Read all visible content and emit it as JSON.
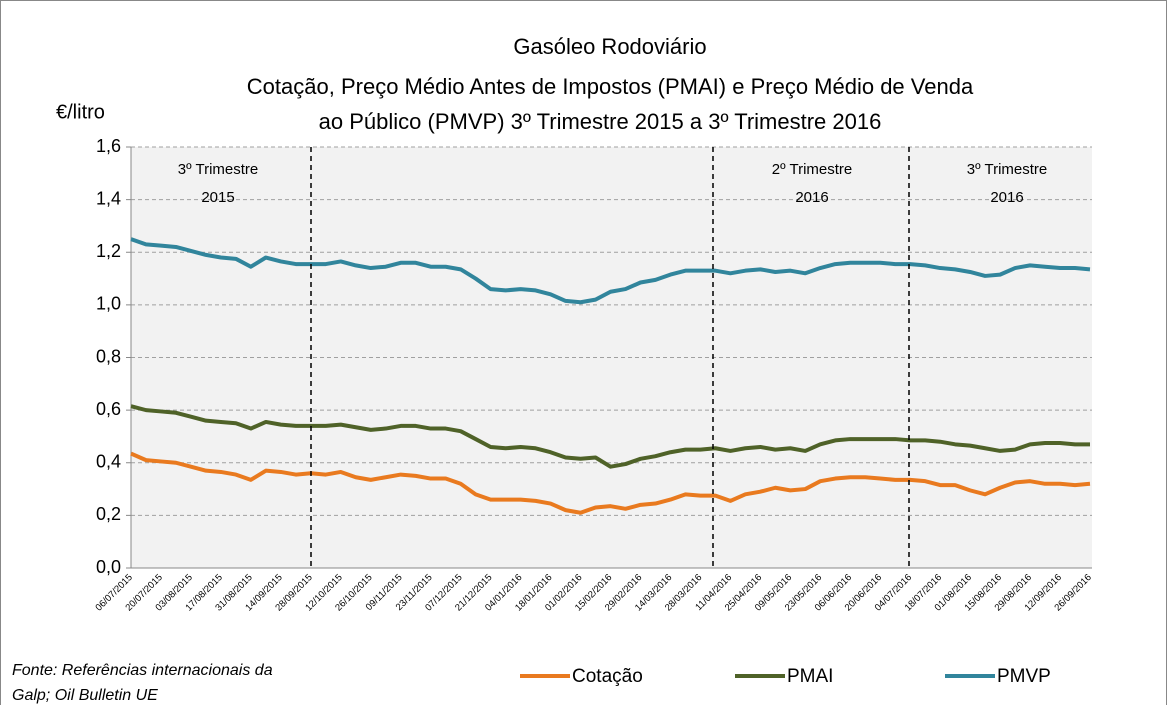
{
  "chart_data": {
    "type": "line",
    "title": [
      "Gasóleo Rodoviário",
      "Cotação, Preço  Médio Antes de Impostos  (PMAI) e Preço  Médio de Venda",
      "ao Público (PMVP) 3º Trimestre 2015 a 3º Trimestre 2016"
    ],
    "y_label": "€/litro",
    "categories": [
      "06/07/2015",
      null,
      "20/07/2015",
      null,
      "03/08/2015",
      null,
      "17/08/2015",
      null,
      "31/08/2015",
      null,
      "14/09/2015",
      null,
      "28/09/2015",
      null,
      "12/10/2015",
      null,
      "26/10/2015",
      null,
      "09/11/2015",
      null,
      "23/11/2015",
      null,
      "07/12/2015",
      null,
      "21/12/2015",
      null,
      "04/01/2016",
      null,
      "18/01/2016",
      null,
      "01/02/2016",
      null,
      "15/02/2016",
      null,
      "29/02/2016",
      null,
      "14/03/2016",
      null,
      "28/03/2016",
      null,
      "11/04/2016",
      null,
      "25/04/2016",
      null,
      "09/05/2016",
      null,
      "23/05/2016",
      null,
      "06/06/2016",
      null,
      "20/06/2016",
      null,
      "04/07/2016",
      null,
      "18/07/2016",
      null,
      "01/08/2016",
      null,
      "15/08/2016",
      null,
      "29/08/2016",
      null,
      "12/09/2016",
      null,
      "26/09/2016"
    ],
    "series": [
      {
        "name": "Cotação",
        "color": "#e97a1f",
        "values": [
          0.435,
          0.41,
          0.405,
          0.4,
          0.385,
          0.37,
          0.365,
          0.355,
          0.335,
          0.37,
          0.365,
          0.355,
          0.36,
          0.355,
          0.365,
          0.345,
          0.335,
          0.345,
          0.355,
          0.35,
          0.34,
          0.34,
          0.32,
          0.28,
          0.26,
          0.26,
          0.26,
          0.255,
          0.245,
          0.22,
          0.21,
          0.23,
          0.235,
          0.225,
          0.24,
          0.245,
          0.26,
          0.28,
          0.275,
          0.275,
          0.255,
          0.28,
          0.29,
          0.305,
          0.295,
          0.3,
          0.33,
          0.34,
          0.345,
          0.345,
          0.34,
          0.335,
          0.335,
          0.33,
          0.315,
          0.315,
          0.295,
          0.28,
          0.305,
          0.325,
          0.33,
          0.32,
          0.32,
          0.315,
          0.32
        ]
      },
      {
        "name": "PMAI",
        "color": "#4f6228",
        "values": [
          0.615,
          0.6,
          0.595,
          0.59,
          0.575,
          0.56,
          0.555,
          0.55,
          0.53,
          0.555,
          0.545,
          0.54,
          0.54,
          0.54,
          0.545,
          0.535,
          0.525,
          0.53,
          0.54,
          0.54,
          0.53,
          0.53,
          0.52,
          0.49,
          0.46,
          0.455,
          0.46,
          0.455,
          0.44,
          0.42,
          0.415,
          0.42,
          0.385,
          0.395,
          0.415,
          0.425,
          0.44,
          0.45,
          0.45,
          0.455,
          0.445,
          0.455,
          0.46,
          0.45,
          0.455,
          0.445,
          0.47,
          0.485,
          0.49,
          0.49,
          0.49,
          0.49,
          0.485,
          0.485,
          0.48,
          0.47,
          0.465,
          0.455,
          0.445,
          0.45,
          0.47,
          0.475,
          0.475,
          0.47,
          0.47
        ]
      },
      {
        "name": "PMVP",
        "color": "#31859c",
        "values": [
          1.25,
          1.23,
          1.225,
          1.22,
          1.205,
          1.19,
          1.18,
          1.175,
          1.145,
          1.18,
          1.165,
          1.155,
          1.155,
          1.155,
          1.165,
          1.15,
          1.14,
          1.145,
          1.16,
          1.16,
          1.145,
          1.145,
          1.135,
          1.1,
          1.06,
          1.055,
          1.06,
          1.055,
          1.04,
          1.015,
          1.01,
          1.02,
          1.05,
          1.06,
          1.085,
          1.095,
          1.115,
          1.13,
          1.13,
          1.13,
          1.12,
          1.13,
          1.135,
          1.125,
          1.13,
          1.12,
          1.14,
          1.155,
          1.16,
          1.16,
          1.16,
          1.155,
          1.155,
          1.15,
          1.14,
          1.135,
          1.125,
          1.11,
          1.115,
          1.14,
          1.15,
          1.145,
          1.14,
          1.14,
          1.135
        ]
      }
    ],
    "ylim": [
      0,
      1.6
    ],
    "yticks": [
      {
        "value": 0,
        "label": "0,0"
      },
      {
        "value": 0.2,
        "label": "0,2"
      },
      {
        "value": 0.4,
        "label": "0,4"
      },
      {
        "value": 0.6,
        "label": "0,6"
      },
      {
        "value": 0.8,
        "label": "0,8"
      },
      {
        "value": 1.0,
        "label": "1,0"
      },
      {
        "value": 1.2,
        "label": "1,2"
      },
      {
        "value": 1.4,
        "label": "1,4"
      },
      {
        "value": 1.6,
        "label": "1,6"
      }
    ],
    "grid": true,
    "annotations": [
      [
        "3º Trimestre",
        "2015"
      ],
      [
        "2º Trimestre",
        "2016"
      ],
      [
        "3º Trimestre",
        "2016"
      ]
    ],
    "source": [
      "Fonte: Referências internacionais da",
      "Galp; Oil Bulletin UE"
    ]
  }
}
